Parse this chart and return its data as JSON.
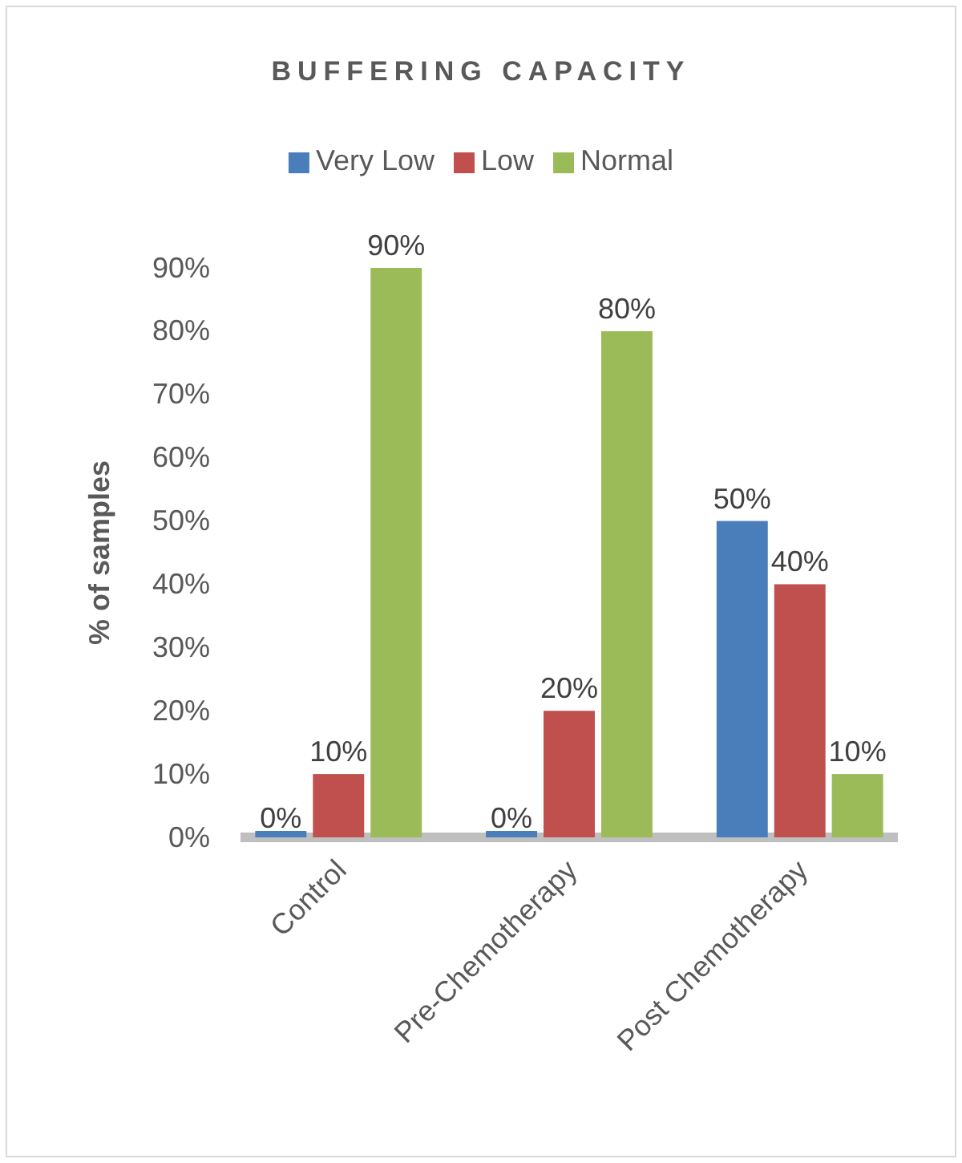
{
  "chart_data": {
    "type": "bar",
    "title": "BUFFERING CAPACITY",
    "ylabel": "% of samples",
    "categories": [
      "Control",
      "Pre-Chemotherapy",
      "Post Chemotherapy"
    ],
    "series": [
      {
        "name": "Very Low",
        "color": "#4a7ebb",
        "values": [
          0,
          0,
          50
        ],
        "value_labels": [
          "0%",
          "0%",
          "50%"
        ]
      },
      {
        "name": "Low",
        "color": "#c0504d",
        "values": [
          10,
          20,
          40
        ],
        "value_labels": [
          "10%",
          "20%",
          "40%"
        ]
      },
      {
        "name": "Normal",
        "color": "#9bbb59",
        "values": [
          90,
          80,
          10
        ],
        "value_labels": [
          "90%",
          "80%",
          "10%"
        ]
      }
    ],
    "ylim": [
      0,
      90
    ],
    "yticks": [
      {
        "value": 0,
        "label": "0%"
      },
      {
        "value": 10,
        "label": "10%"
      },
      {
        "value": 20,
        "label": "20%"
      },
      {
        "value": 30,
        "label": "30%"
      },
      {
        "value": 40,
        "label": "40%"
      },
      {
        "value": 50,
        "label": "50%"
      },
      {
        "value": 60,
        "label": "60%"
      },
      {
        "value": 70,
        "label": "70%"
      },
      {
        "value": 80,
        "label": "80%"
      },
      {
        "value": 90,
        "label": "90%"
      }
    ],
    "grid": false,
    "legend": "top"
  }
}
